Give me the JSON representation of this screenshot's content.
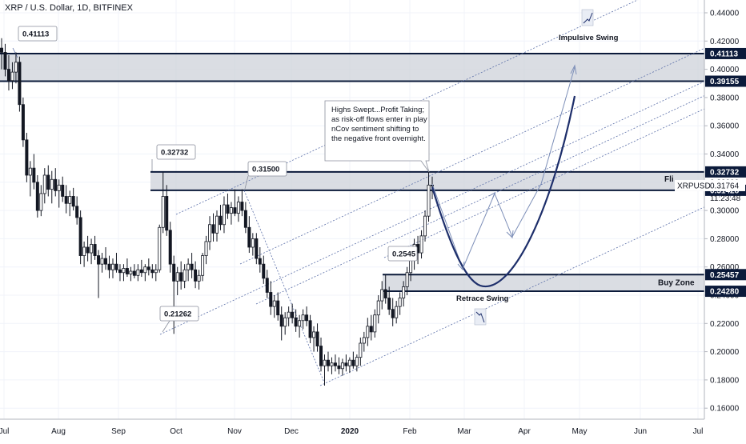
{
  "window": {
    "title": "XRP / U.S. Dollar, 1D, BITFINEX"
  },
  "colors": {
    "up": "#131722",
    "down": "#131722",
    "zone_fill": "#d1d4dc",
    "zone_border": "#0b1a3a",
    "channel_line": "#5b6fa8",
    "arrow": "#7d8fb8",
    "curve": "#1e2f6b",
    "grid": "#f0f3fa",
    "axis_text": "#131722",
    "label_dark": "#0b1a3a"
  },
  "chart_data": {
    "type": "candlestick",
    "title": "XRP / U.S. Dollar, 1D, BITFINEX",
    "symbol": "XRPUSD",
    "ylim": [
      0.15,
      0.45
    ],
    "x_ticks": [
      "Jul",
      "Aug",
      "Sep",
      "Oct",
      "Nov",
      "Dec",
      "2020",
      "Feb",
      "Mar",
      "Apr",
      "May",
      "Jun",
      "Jul"
    ],
    "y_ticks": [
      "0.44000",
      "0.42000",
      "0.40000",
      "0.38000",
      "0.36000",
      "0.34000",
      "0.32000",
      "0.30000",
      "0.28000",
      "0.26000",
      "0.24000",
      "0.22000",
      "0.20000",
      "0.18000",
      "0.16000"
    ],
    "price_labels": [
      {
        "text": "0.41113",
        "value": 0.41113,
        "style": "dark"
      },
      {
        "text": "0.39155",
        "value": 0.39155,
        "style": "dark"
      },
      {
        "text": "0.32732",
        "value": 0.32732,
        "style": "dark"
      },
      {
        "text": "0.31428",
        "value": 0.31428,
        "style": "dark"
      },
      {
        "text": "0.25457",
        "value": 0.25457,
        "style": "dark"
      },
      {
        "text": "0.24280",
        "value": 0.2428,
        "style": "dark"
      }
    ],
    "last_price": {
      "symbol": "XRPUSD",
      "value": "0.31764",
      "countdown": "11:23:48"
    },
    "zones": [
      {
        "from": 0.39155,
        "to": 0.41113,
        "label": ""
      },
      {
        "from": 0.31428,
        "to": 0.32732,
        "label": "Fli"
      },
      {
        "from": 0.2428,
        "to": 0.25457,
        "label": "Buy Zone"
      }
    ],
    "callouts": [
      {
        "text": "0.41113",
        "value": 0.41113
      },
      {
        "text": "0.32732",
        "value": 0.32732
      },
      {
        "text": "0.31500",
        "value": 0.315
      },
      {
        "text": "0.21262",
        "value": 0.21262
      },
      {
        "text": "0.2545",
        "value": 0.2545
      }
    ],
    "annotations": {
      "note_lines": [
        "Highs Swept...Profit Taking;",
        "as risk-off flows enter in play",
        "nCov sentiment shifting to",
        "the negative front overnight."
      ],
      "impulsive": "Impulsive Swing",
      "retrace": "Retrace Swing",
      "buy_zone": "Buy Zone",
      "flip": "Fli"
    },
    "candles": [
      {
        "o": 0.415,
        "h": 0.422,
        "l": 0.4,
        "c": 0.412
      },
      {
        "o": 0.412,
        "h": 0.418,
        "l": 0.395,
        "c": 0.4
      },
      {
        "o": 0.4,
        "h": 0.41,
        "l": 0.385,
        "c": 0.392
      },
      {
        "o": 0.392,
        "h": 0.405,
        "l": 0.386,
        "c": 0.398
      },
      {
        "o": 0.398,
        "h": 0.412,
        "l": 0.39,
        "c": 0.405
      },
      {
        "o": 0.405,
        "h": 0.409,
        "l": 0.37,
        "c": 0.375
      },
      {
        "o": 0.375,
        "h": 0.38,
        "l": 0.345,
        "c": 0.35
      },
      {
        "o": 0.35,
        "h": 0.355,
        "l": 0.32,
        "c": 0.325
      },
      {
        "o": 0.325,
        "h": 0.335,
        "l": 0.31,
        "c": 0.33
      },
      {
        "o": 0.33,
        "h": 0.34,
        "l": 0.315,
        "c": 0.32
      },
      {
        "o": 0.32,
        "h": 0.325,
        "l": 0.295,
        "c": 0.3
      },
      {
        "o": 0.3,
        "h": 0.318,
        "l": 0.296,
        "c": 0.312
      },
      {
        "o": 0.312,
        "h": 0.33,
        "l": 0.305,
        "c": 0.325
      },
      {
        "o": 0.325,
        "h": 0.332,
        "l": 0.31,
        "c": 0.315
      },
      {
        "o": 0.315,
        "h": 0.328,
        "l": 0.305,
        "c": 0.322
      },
      {
        "o": 0.322,
        "h": 0.33,
        "l": 0.31,
        "c": 0.314
      },
      {
        "o": 0.314,
        "h": 0.322,
        "l": 0.302,
        "c": 0.318
      },
      {
        "o": 0.318,
        "h": 0.324,
        "l": 0.306,
        "c": 0.31
      },
      {
        "o": 0.31,
        "h": 0.318,
        "l": 0.298,
        "c": 0.305
      },
      {
        "o": 0.305,
        "h": 0.314,
        "l": 0.296,
        "c": 0.31
      },
      {
        "o": 0.31,
        "h": 0.316,
        "l": 0.3,
        "c": 0.303
      },
      {
        "o": 0.303,
        "h": 0.31,
        "l": 0.29,
        "c": 0.295
      },
      {
        "o": 0.295,
        "h": 0.3,
        "l": 0.262,
        "c": 0.268
      },
      {
        "o": 0.268,
        "h": 0.278,
        "l": 0.26,
        "c": 0.274
      },
      {
        "o": 0.274,
        "h": 0.282,
        "l": 0.264,
        "c": 0.27
      },
      {
        "o": 0.27,
        "h": 0.28,
        "l": 0.262,
        "c": 0.276
      },
      {
        "o": 0.276,
        "h": 0.282,
        "l": 0.265,
        "c": 0.268
      },
      {
        "o": 0.268,
        "h": 0.272,
        "l": 0.238,
        "c": 0.262
      },
      {
        "o": 0.262,
        "h": 0.27,
        "l": 0.256,
        "c": 0.266
      },
      {
        "o": 0.266,
        "h": 0.274,
        "l": 0.258,
        "c": 0.262
      },
      {
        "o": 0.262,
        "h": 0.268,
        "l": 0.252,
        "c": 0.258
      },
      {
        "o": 0.258,
        "h": 0.266,
        "l": 0.252,
        "c": 0.262
      },
      {
        "o": 0.262,
        "h": 0.27,
        "l": 0.256,
        "c": 0.258
      },
      {
        "o": 0.258,
        "h": 0.262,
        "l": 0.25,
        "c": 0.256
      },
      {
        "o": 0.256,
        "h": 0.262,
        "l": 0.25,
        "c": 0.259
      },
      {
        "o": 0.259,
        "h": 0.266,
        "l": 0.253,
        "c": 0.255
      },
      {
        "o": 0.255,
        "h": 0.26,
        "l": 0.25,
        "c": 0.257
      },
      {
        "o": 0.257,
        "h": 0.262,
        "l": 0.252,
        "c": 0.254
      },
      {
        "o": 0.254,
        "h": 0.262,
        "l": 0.25,
        "c": 0.258
      },
      {
        "o": 0.258,
        "h": 0.265,
        "l": 0.253,
        "c": 0.256
      },
      {
        "o": 0.256,
        "h": 0.262,
        "l": 0.25,
        "c": 0.26
      },
      {
        "o": 0.26,
        "h": 0.266,
        "l": 0.254,
        "c": 0.258
      },
      {
        "o": 0.258,
        "h": 0.262,
        "l": 0.252,
        "c": 0.256
      },
      {
        "o": 0.256,
        "h": 0.262,
        "l": 0.25,
        "c": 0.258
      },
      {
        "o": 0.258,
        "h": 0.29,
        "l": 0.256,
        "c": 0.288
      },
      {
        "o": 0.288,
        "h": 0.3273,
        "l": 0.284,
        "c": 0.31
      },
      {
        "o": 0.31,
        "h": 0.318,
        "l": 0.282,
        "c": 0.286
      },
      {
        "o": 0.286,
        "h": 0.292,
        "l": 0.256,
        "c": 0.262
      },
      {
        "o": 0.262,
        "h": 0.268,
        "l": 0.2126,
        "c": 0.25
      },
      {
        "o": 0.25,
        "h": 0.26,
        "l": 0.24,
        "c": 0.256
      },
      {
        "o": 0.256,
        "h": 0.264,
        "l": 0.244,
        "c": 0.25
      },
      {
        "o": 0.25,
        "h": 0.262,
        "l": 0.245,
        "c": 0.258
      },
      {
        "o": 0.258,
        "h": 0.266,
        "l": 0.25,
        "c": 0.262
      },
      {
        "o": 0.262,
        "h": 0.27,
        "l": 0.252,
        "c": 0.258
      },
      {
        "o": 0.258,
        "h": 0.264,
        "l": 0.245,
        "c": 0.25
      },
      {
        "o": 0.25,
        "h": 0.258,
        "l": 0.244,
        "c": 0.254
      },
      {
        "o": 0.254,
        "h": 0.27,
        "l": 0.25,
        "c": 0.268
      },
      {
        "o": 0.268,
        "h": 0.282,
        "l": 0.262,
        "c": 0.278
      },
      {
        "o": 0.278,
        "h": 0.296,
        "l": 0.272,
        "c": 0.29
      },
      {
        "o": 0.29,
        "h": 0.298,
        "l": 0.278,
        "c": 0.284
      },
      {
        "o": 0.284,
        "h": 0.3,
        "l": 0.278,
        "c": 0.296
      },
      {
        "o": 0.296,
        "h": 0.304,
        "l": 0.286,
        "c": 0.29
      },
      {
        "o": 0.29,
        "h": 0.31,
        "l": 0.284,
        "c": 0.304
      },
      {
        "o": 0.304,
        "h": 0.312,
        "l": 0.294,
        "c": 0.298
      },
      {
        "o": 0.298,
        "h": 0.306,
        "l": 0.29,
        "c": 0.302
      },
      {
        "o": 0.302,
        "h": 0.315,
        "l": 0.296,
        "c": 0.298
      },
      {
        "o": 0.298,
        "h": 0.31,
        "l": 0.292,
        "c": 0.306
      },
      {
        "o": 0.306,
        "h": 0.315,
        "l": 0.296,
        "c": 0.3
      },
      {
        "o": 0.3,
        "h": 0.306,
        "l": 0.284,
        "c": 0.288
      },
      {
        "o": 0.288,
        "h": 0.296,
        "l": 0.27,
        "c": 0.274
      },
      {
        "o": 0.274,
        "h": 0.284,
        "l": 0.268,
        "c": 0.28
      },
      {
        "o": 0.28,
        "h": 0.284,
        "l": 0.262,
        "c": 0.266
      },
      {
        "o": 0.266,
        "h": 0.274,
        "l": 0.256,
        "c": 0.262
      },
      {
        "o": 0.262,
        "h": 0.268,
        "l": 0.248,
        "c": 0.252
      },
      {
        "o": 0.252,
        "h": 0.258,
        "l": 0.238,
        "c": 0.242
      },
      {
        "o": 0.242,
        "h": 0.25,
        "l": 0.226,
        "c": 0.232
      },
      {
        "o": 0.232,
        "h": 0.24,
        "l": 0.224,
        "c": 0.236
      },
      {
        "o": 0.236,
        "h": 0.242,
        "l": 0.222,
        "c": 0.226
      },
      {
        "o": 0.226,
        "h": 0.232,
        "l": 0.208,
        "c": 0.218
      },
      {
        "o": 0.218,
        "h": 0.228,
        "l": 0.212,
        "c": 0.224
      },
      {
        "o": 0.224,
        "h": 0.232,
        "l": 0.218,
        "c": 0.228
      },
      {
        "o": 0.228,
        "h": 0.234,
        "l": 0.22,
        "c": 0.224
      },
      {
        "o": 0.224,
        "h": 0.23,
        "l": 0.214,
        "c": 0.218
      },
      {
        "o": 0.218,
        "h": 0.226,
        "l": 0.21,
        "c": 0.222
      },
      {
        "o": 0.222,
        "h": 0.23,
        "l": 0.216,
        "c": 0.226
      },
      {
        "o": 0.226,
        "h": 0.232,
        "l": 0.218,
        "c": 0.222
      },
      {
        "o": 0.222,
        "h": 0.226,
        "l": 0.206,
        "c": 0.21
      },
      {
        "o": 0.21,
        "h": 0.218,
        "l": 0.2,
        "c": 0.214
      },
      {
        "o": 0.214,
        "h": 0.22,
        "l": 0.2,
        "c": 0.204
      },
      {
        "o": 0.204,
        "h": 0.21,
        "l": 0.186,
        "c": 0.19
      },
      {
        "o": 0.19,
        "h": 0.198,
        "l": 0.176,
        "c": 0.194
      },
      {
        "o": 0.194,
        "h": 0.2,
        "l": 0.186,
        "c": 0.19
      },
      {
        "o": 0.19,
        "h": 0.196,
        "l": 0.184,
        "c": 0.192
      },
      {
        "o": 0.192,
        "h": 0.198,
        "l": 0.186,
        "c": 0.19
      },
      {
        "o": 0.19,
        "h": 0.196,
        "l": 0.184,
        "c": 0.188
      },
      {
        "o": 0.188,
        "h": 0.195,
        "l": 0.183,
        "c": 0.192
      },
      {
        "o": 0.192,
        "h": 0.198,
        "l": 0.186,
        "c": 0.19
      },
      {
        "o": 0.19,
        "h": 0.196,
        "l": 0.185,
        "c": 0.194
      },
      {
        "o": 0.194,
        "h": 0.2,
        "l": 0.188,
        "c": 0.19
      },
      {
        "o": 0.19,
        "h": 0.198,
        "l": 0.186,
        "c": 0.196
      },
      {
        "o": 0.196,
        "h": 0.21,
        "l": 0.19,
        "c": 0.206
      },
      {
        "o": 0.206,
        "h": 0.214,
        "l": 0.2,
        "c": 0.21
      },
      {
        "o": 0.21,
        "h": 0.224,
        "l": 0.204,
        "c": 0.218
      },
      {
        "o": 0.218,
        "h": 0.226,
        "l": 0.208,
        "c": 0.214
      },
      {
        "o": 0.214,
        "h": 0.23,
        "l": 0.21,
        "c": 0.226
      },
      {
        "o": 0.226,
        "h": 0.24,
        "l": 0.22,
        "c": 0.236
      },
      {
        "o": 0.236,
        "h": 0.25,
        "l": 0.23,
        "c": 0.244
      },
      {
        "o": 0.244,
        "h": 0.2545,
        "l": 0.234,
        "c": 0.238
      },
      {
        "o": 0.238,
        "h": 0.246,
        "l": 0.226,
        "c": 0.23
      },
      {
        "o": 0.23,
        "h": 0.238,
        "l": 0.218,
        "c": 0.224
      },
      {
        "o": 0.224,
        "h": 0.236,
        "l": 0.22,
        "c": 0.232
      },
      {
        "o": 0.232,
        "h": 0.242,
        "l": 0.226,
        "c": 0.238
      },
      {
        "o": 0.238,
        "h": 0.25,
        "l": 0.232,
        "c": 0.246
      },
      {
        "o": 0.246,
        "h": 0.26,
        "l": 0.24,
        "c": 0.256
      },
      {
        "o": 0.256,
        "h": 0.27,
        "l": 0.25,
        "c": 0.266
      },
      {
        "o": 0.266,
        "h": 0.28,
        "l": 0.258,
        "c": 0.276
      },
      {
        "o": 0.276,
        "h": 0.282,
        "l": 0.262,
        "c": 0.27
      },
      {
        "o": 0.27,
        "h": 0.286,
        "l": 0.266,
        "c": 0.282
      },
      {
        "o": 0.282,
        "h": 0.3,
        "l": 0.278,
        "c": 0.296
      },
      {
        "o": 0.296,
        "h": 0.3273,
        "l": 0.292,
        "c": 0.318
      },
      {
        "o": 0.318,
        "h": 0.324,
        "l": 0.308,
        "c": 0.3176
      }
    ]
  }
}
